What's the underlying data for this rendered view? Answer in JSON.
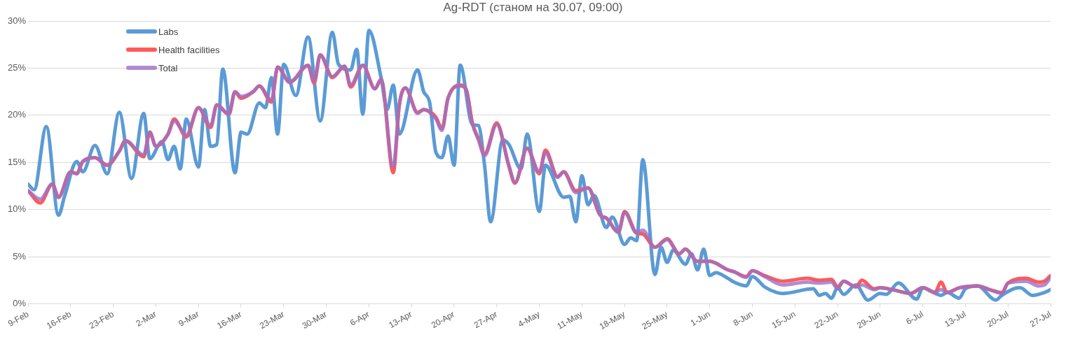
{
  "chart_data": {
    "type": "line",
    "title": "Ag-RDT (станом на 30.07, 09:00)",
    "xlim": [
      "--02-09",
      "--07-27"
    ],
    "xticks": [
      {
        "value": "--02-09",
        "label": "9-Feb"
      },
      {
        "value": "--02-16",
        "label": "16-Feb"
      },
      {
        "value": "--02-23",
        "label": "23-Feb"
      },
      {
        "value": "--03-02",
        "label": "2-Mar"
      },
      {
        "value": "--03-09",
        "label": "9-Mar"
      },
      {
        "value": "--03-16",
        "label": "16-Mar"
      },
      {
        "value": "--03-23",
        "label": "23-Mar"
      },
      {
        "value": "--03-30",
        "label": "30-Mar"
      },
      {
        "value": "--04-06",
        "label": "6-Apr"
      },
      {
        "value": "--04-13",
        "label": "13-Apr"
      },
      {
        "value": "--04-20",
        "label": "20-Apr"
      },
      {
        "value": "--04-27",
        "label": "27-Apr"
      },
      {
        "value": "--05-04",
        "label": "4-May"
      },
      {
        "value": "--05-11",
        "label": "11-May"
      },
      {
        "value": "--05-18",
        "label": "18-May"
      },
      {
        "value": "--05-25",
        "label": "25-May"
      },
      {
        "value": "--06-01",
        "label": "1-Jun"
      },
      {
        "value": "--06-08",
        "label": "8-Jun"
      },
      {
        "value": "--06-15",
        "label": "15-Jun"
      },
      {
        "value": "--06-22",
        "label": "22-Jun"
      },
      {
        "value": "--06-29",
        "label": "29-Jun"
      },
      {
        "value": "--07-06",
        "label": "6-Jul"
      },
      {
        "value": "--07-13",
        "label": "13-Jul"
      },
      {
        "value": "--07-20",
        "label": "20-Jul"
      },
      {
        "value": "--07-27",
        "label": "27-Jul"
      }
    ],
    "ylim": [
      0,
      30
    ],
    "yticks": [
      {
        "value": 0,
        "label": "0%"
      },
      {
        "value": 5,
        "label": "5%"
      },
      {
        "value": 10,
        "label": "10%"
      },
      {
        "value": 15,
        "label": "15%"
      },
      {
        "value": 20,
        "label": "20%"
      },
      {
        "value": 25,
        "label": "25%"
      },
      {
        "value": 30,
        "label": "30%"
      }
    ],
    "grid": "y",
    "legend": "top left",
    "marker": "none",
    "line_style": "solid",
    "series": [
      {
        "name": "Labs",
        "color": "#5b9bd5",
        "x": [
          "--02-09",
          "--02-10",
          "--02-12",
          "--02-14",
          "--02-15",
          "--02-17",
          "--02-18",
          "--02-20",
          "--02-22",
          "--02-24",
          "--02-26",
          "--02-28",
          "--03-01",
          "--03-03",
          "--03-04",
          "--03-05",
          "--03-06",
          "--03-07",
          "--03-09",
          "--03-10",
          "--03-11",
          "--03-12",
          "--03-13",
          "--03-15",
          "--03-16",
          "--03-17",
          "--03-19",
          "--03-20",
          "--03-21",
          "--03-22",
          "--03-23",
          "--03-25",
          "--03-27",
          "--03-29",
          "--03-31",
          "--04-01",
          "--04-03",
          "--04-04",
          "--04-05",
          "--04-06",
          "--04-08",
          "--04-09",
          "--04-10",
          "--04-11",
          "--04-14",
          "--04-15",
          "--04-16",
          "--04-17",
          "--04-18",
          "--04-19",
          "--04-20",
          "--04-21",
          "--04-23",
          "--04-24",
          "--04-25",
          "--04-26",
          "--04-28",
          "--04-29",
          "--05-01",
          "--05-02",
          "--05-04",
          "--05-05",
          "--05-08",
          "--05-09",
          "--05-10",
          "--05-11",
          "--05-12",
          "--05-13",
          "--05-15",
          "--05-16",
          "--05-18",
          "--05-19",
          "--05-20",
          "--05-21",
          "--05-23",
          "--05-24",
          "--05-25",
          "--05-26",
          "--05-28",
          "--05-29",
          "--05-30",
          "--05-31",
          "--06-01",
          "--06-02",
          "--06-04",
          "--06-05",
          "--06-07",
          "--06-08",
          "--06-10",
          "--06-12",
          "--06-13",
          "--06-18",
          "--06-19",
          "--06-20",
          "--06-21",
          "--06-22",
          "--06-23",
          "--06-25",
          "--06-27",
          "--06-29",
          "--06-30",
          "--07-02",
          "--07-05",
          "--07-06",
          "--07-09",
          "--07-10",
          "--07-12",
          "--07-13",
          "--07-15",
          "--07-18",
          "--07-19",
          "--07-21",
          "--07-22",
          "--07-24",
          "--07-26",
          "--07-27"
        ],
        "values": [
          12.7,
          12.1,
          18.8,
          9.4,
          11.4,
          15.1,
          14.0,
          16.8,
          13.8,
          20.3,
          13.3,
          20.2,
          15.4,
          17.2,
          15.3,
          16.7,
          14.3,
          19.6,
          14.5,
          20.6,
          16.7,
          16.9,
          24.9,
          13.9,
          18.2,
          18.0,
          21.3,
          20.8,
          24.0,
          18.0,
          25.4,
          22.1,
          28.3,
          19.4,
          28.8,
          25.4,
          24.8,
          27.0,
          20.1,
          29.0,
          24.0,
          20.6,
          23.2,
          18.0,
          24.8,
          22.5,
          21.3,
          16.1,
          15.5,
          17.8,
          14.7,
          25.3,
          19.0,
          18.9,
          14.7,
          8.7,
          17.4,
          16.9,
          14.3,
          18.0,
          9.8,
          14.7,
          11.3,
          11.4,
          8.7,
          13.6,
          10.5,
          11.5,
          8.1,
          9.2,
          6.3,
          7.0,
          6.7,
          15.3,
          3.1,
          6.0,
          4.4,
          5.7,
          4.2,
          5.3,
          3.6,
          5.8,
          3.0,
          3.3,
          2.7,
          2.3,
          1.9,
          2.9,
          1.8,
          1.2,
          1.1,
          1.6,
          0.9,
          1.1,
          0.6,
          1.7,
          1.0,
          2.0,
          0.4,
          1.1,
          1.0,
          2.2,
          0.5,
          1.7,
          0.9,
          1.2,
          0.6,
          1.6,
          1.9,
          0.4,
          0.9,
          1.6,
          1.7,
          0.9,
          1.2,
          1.5
        ]
      },
      {
        "name": "Health facilities",
        "color": "#ff5a5a",
        "x": [
          "--02-09",
          "--02-11",
          "--02-13",
          "--02-14",
          "--02-16",
          "--02-17",
          "--02-18",
          "--02-20",
          "--02-22",
          "--02-24",
          "--02-25",
          "--02-28",
          "--03-01",
          "--03-02",
          "--03-04",
          "--03-05",
          "--03-07",
          "--03-09",
          "--03-11",
          "--03-12",
          "--03-14",
          "--03-15",
          "--03-16",
          "--03-18",
          "--03-19",
          "--03-21",
          "--03-22",
          "--03-24",
          "--03-27",
          "--03-28",
          "--03-29",
          "--03-31",
          "--04-02",
          "--04-03",
          "--04-05",
          "--04-07",
          "--04-08",
          "--04-10",
          "--04-11",
          "--04-12",
          "--04-14",
          "--04-15",
          "--04-17",
          "--04-18",
          "--04-19",
          "--04-21",
          "--04-22",
          "--04-23",
          "--04-24",
          "--04-25",
          "--04-27",
          "--04-29",
          "--04-30",
          "--05-02",
          "--05-04",
          "--05-05",
          "--05-07",
          "--05-08",
          "--05-10",
          "--05-12",
          "--05-14",
          "--05-15",
          "--05-17",
          "--05-18",
          "--05-20",
          "--05-21",
          "--05-23",
          "--05-25",
          "--05-27",
          "--05-28",
          "--05-30",
          "--06-01",
          "--06-04",
          "--06-05",
          "--06-07",
          "--06-08",
          "--06-10",
          "--06-13",
          "--06-17",
          "--06-19",
          "--06-21",
          "--06-22",
          "--06-23",
          "--06-25",
          "--06-26",
          "--06-28",
          "--06-29",
          "--07-01",
          "--07-04",
          "--07-06",
          "--07-08",
          "--07-09",
          "--07-10",
          "--07-12",
          "--07-15",
          "--07-17",
          "--07-19",
          "--07-20",
          "--07-23",
          "--07-25",
          "--07-26",
          "--07-27"
        ],
        "values": [
          12.0,
          10.7,
          12.7,
          11.3,
          14.0,
          13.8,
          15.1,
          15.5,
          14.7,
          16.2,
          17.3,
          15.6,
          18.2,
          16.7,
          18.0,
          19.6,
          17.7,
          20.8,
          18.7,
          21.1,
          20.1,
          22.5,
          21.8,
          22.5,
          23.1,
          21.4,
          25.1,
          23.5,
          25.3,
          23.4,
          26.4,
          24.0,
          25.2,
          23.0,
          25.3,
          22.8,
          23.8,
          13.9,
          21.1,
          22.9,
          20.3,
          20.6,
          19.8,
          18.6,
          21.8,
          23.2,
          22.7,
          19.2,
          17.5,
          15.9,
          19.2,
          14.6,
          12.8,
          16.5,
          13.8,
          16.3,
          13.5,
          14.0,
          12.0,
          12.3,
          9.4,
          9.1,
          7.6,
          9.8,
          7.5,
          7.4,
          6.0,
          6.9,
          5.3,
          5.8,
          4.5,
          4.5,
          3.6,
          3.4,
          2.9,
          3.5,
          3.0,
          2.4,
          2.7,
          2.5,
          2.6,
          1.8,
          2.4,
          1.8,
          2.5,
          1.6,
          1.7,
          1.5,
          1.1,
          1.7,
          1.2,
          2.3,
          1.2,
          1.7,
          1.9,
          1.5,
          1.2,
          2.2,
          2.7,
          2.3,
          2.4,
          3.0
        ]
      },
      {
        "name": "Total",
        "color": "#9e6fc4",
        "x": [
          "--02-09",
          "--02-11",
          "--02-13",
          "--02-14",
          "--02-16",
          "--02-17",
          "--02-18",
          "--02-20",
          "--02-22",
          "--02-24",
          "--02-25",
          "--02-28",
          "--03-01",
          "--03-02",
          "--03-04",
          "--03-05",
          "--03-07",
          "--03-09",
          "--03-11",
          "--03-12",
          "--03-14",
          "--03-15",
          "--03-16",
          "--03-18",
          "--03-19",
          "--03-21",
          "--03-22",
          "--03-24",
          "--03-27",
          "--03-28",
          "--03-29",
          "--03-31",
          "--04-02",
          "--04-03",
          "--04-05",
          "--04-07",
          "--04-08",
          "--04-10",
          "--04-11",
          "--04-12",
          "--04-14",
          "--04-15",
          "--04-17",
          "--04-18",
          "--04-19",
          "--04-21",
          "--04-22",
          "--04-23",
          "--04-24",
          "--04-25",
          "--04-27",
          "--04-29",
          "--04-30",
          "--05-02",
          "--05-04",
          "--05-05",
          "--05-07",
          "--05-08",
          "--05-10",
          "--05-12",
          "--05-14",
          "--05-15",
          "--05-17",
          "--05-18",
          "--05-20",
          "--05-21",
          "--05-23",
          "--05-25",
          "--05-27",
          "--05-28",
          "--05-30",
          "--06-01",
          "--06-04",
          "--06-05",
          "--06-07",
          "--06-08",
          "--06-10",
          "--06-13",
          "--06-17",
          "--06-19",
          "--06-21",
          "--06-22",
          "--06-23",
          "--06-25",
          "--06-26",
          "--06-28",
          "--06-29",
          "--07-01",
          "--07-04",
          "--07-06",
          "--07-08",
          "--07-09",
          "--07-10",
          "--07-12",
          "--07-15",
          "--07-17",
          "--07-19",
          "--07-20",
          "--07-23",
          "--07-25",
          "--07-26",
          "--07-27"
        ],
        "values": [
          12.0,
          11.1,
          12.7,
          11.3,
          14.0,
          13.8,
          15.1,
          15.5,
          14.7,
          16.2,
          17.3,
          15.8,
          18.2,
          16.7,
          18.0,
          19.4,
          17.9,
          20.8,
          18.9,
          21.1,
          20.1,
          22.5,
          22.0,
          22.5,
          23.1,
          21.6,
          25.1,
          23.5,
          25.3,
          23.6,
          26.4,
          24.1,
          25.2,
          23.2,
          25.3,
          22.8,
          23.8,
          14.5,
          21.1,
          22.9,
          20.2,
          20.6,
          19.6,
          18.4,
          21.8,
          23.1,
          22.7,
          19.1,
          17.4,
          15.7,
          19.0,
          14.7,
          12.9,
          16.5,
          14.0,
          16.0,
          13.4,
          14.0,
          11.8,
          12.3,
          9.4,
          9.1,
          7.6,
          9.7,
          7.5,
          7.8,
          6.0,
          6.8,
          5.3,
          5.8,
          4.5,
          4.5,
          3.6,
          3.4,
          2.8,
          3.5,
          2.9,
          2.0,
          2.3,
          2.2,
          2.3,
          1.6,
          2.4,
          1.8,
          2.0,
          1.5,
          1.7,
          1.5,
          1.1,
          1.7,
          1.2,
          1.5,
          1.2,
          1.7,
          1.9,
          1.5,
          1.1,
          2.2,
          2.4,
          1.9,
          2.0,
          2.8
        ]
      }
    ]
  }
}
